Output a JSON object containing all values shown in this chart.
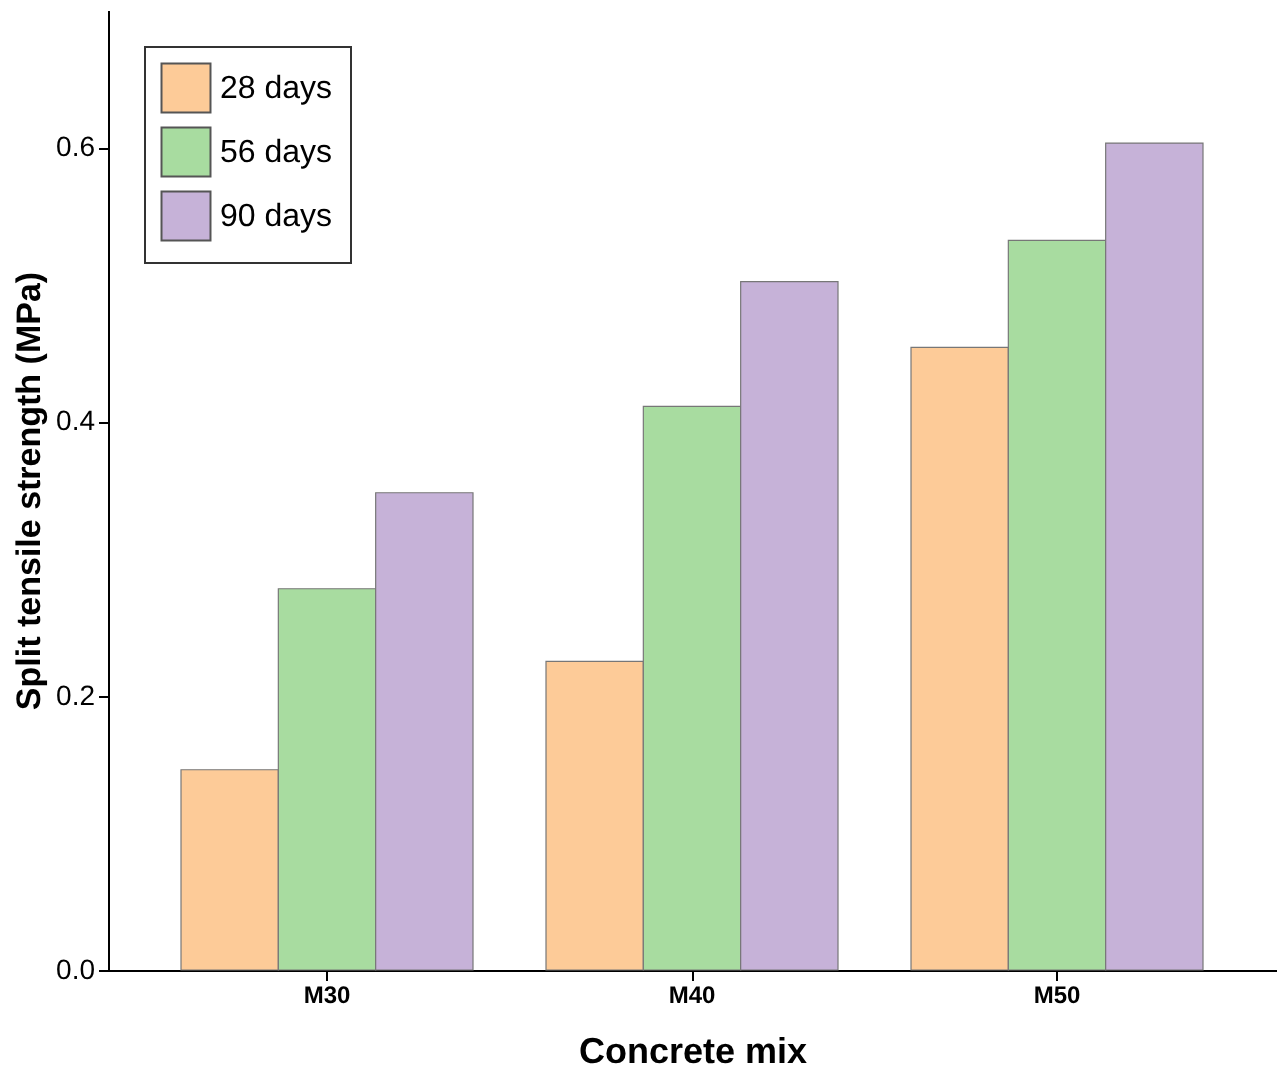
{
  "chart_data": {
    "type": "bar",
    "xlabel": "Concrete mix",
    "ylabel": "Split tensile strength (MPa)",
    "categories": [
      "M30",
      "M40",
      "M50"
    ],
    "series": [
      {
        "name": "28 days",
        "color": "#fdcb98",
        "values": [
          0.146,
          0.225,
          0.454
        ]
      },
      {
        "name": "56 days",
        "color": "#a8dca0",
        "values": [
          0.278,
          0.411,
          0.532
        ]
      },
      {
        "name": "90 days",
        "color": "#c6b2d8",
        "values": [
          0.348,
          0.502,
          0.603
        ]
      }
    ],
    "ylim": [
      0,
      0.7
    ],
    "yticks": [
      {
        "value": 0,
        "label": "0.0"
      },
      {
        "value": 0.2,
        "label": "0.2"
      },
      {
        "value": 0.4,
        "label": "0.4"
      },
      {
        "value": 0.6,
        "label": "0.6"
      }
    ],
    "grid": false,
    "legend": "top left"
  }
}
